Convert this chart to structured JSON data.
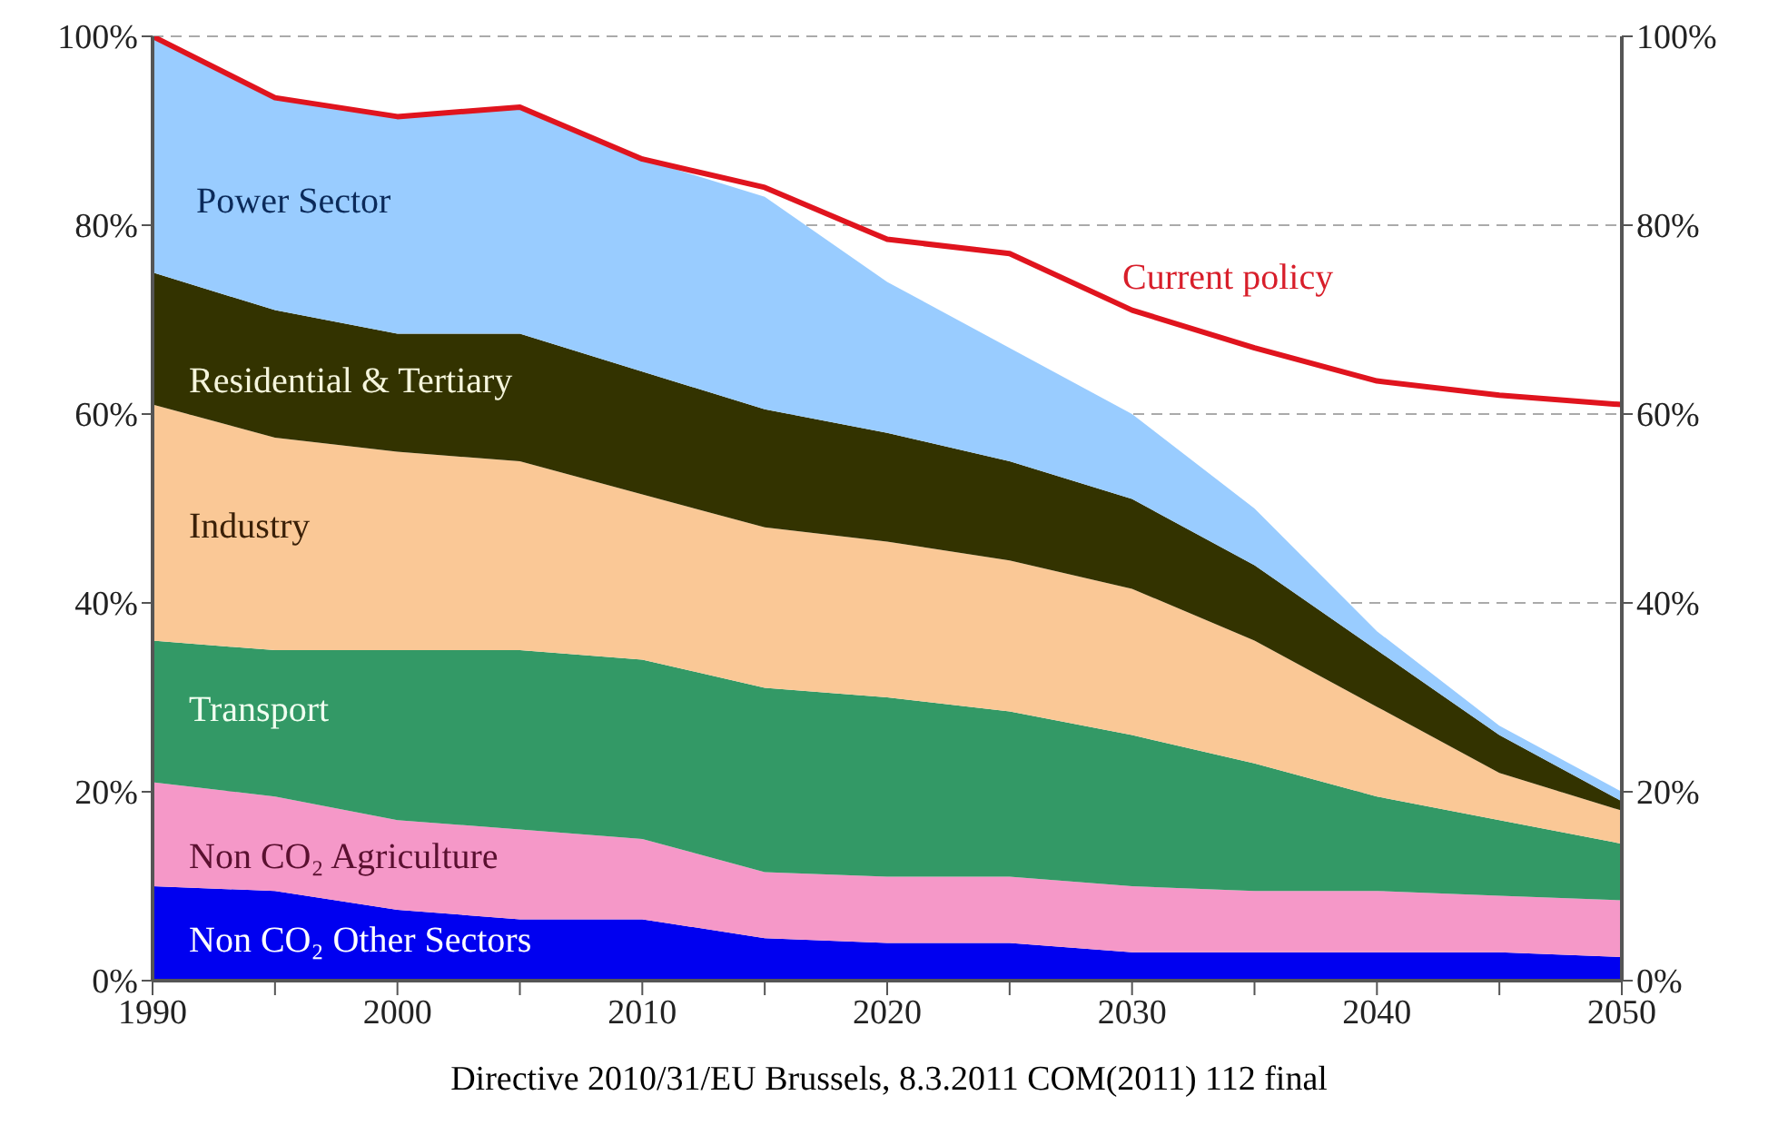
{
  "chart_data": {
    "type": "area",
    "stacked": true,
    "x": [
      1990,
      1995,
      2000,
      2005,
      2010,
      2015,
      2020,
      2025,
      2030,
      2035,
      2040,
      2045,
      2050
    ],
    "series": [
      {
        "name": "Non CO₂ Other Sectors",
        "color": "#0000f0",
        "values": [
          10,
          9.5,
          7.5,
          6.5,
          6.5,
          4.5,
          4,
          4,
          3,
          3,
          3,
          3,
          2.5
        ]
      },
      {
        "name": "Non CO₂ Agriculture",
        "color": "#f598c8",
        "values": [
          11,
          10,
          9.5,
          9.5,
          8.5,
          7,
          7,
          7,
          7,
          6.5,
          6.5,
          6,
          6
        ]
      },
      {
        "name": "Transport",
        "color": "#339966",
        "values": [
          15,
          15.5,
          18,
          19,
          19,
          19.5,
          19,
          17.5,
          16,
          13.5,
          10,
          8,
          6
        ]
      },
      {
        "name": "Industry",
        "color": "#fac896",
        "values": [
          25,
          22.5,
          21,
          20,
          17.5,
          17,
          16.5,
          16,
          15.5,
          13,
          9.5,
          5,
          3.5
        ]
      },
      {
        "name": "Residential & Tertiary",
        "color": "#333300",
        "values": [
          14,
          13.5,
          12.5,
          13.5,
          13,
          12.5,
          11.5,
          10.5,
          9.5,
          8,
          6,
          4,
          1
        ]
      },
      {
        "name": "Power Sector",
        "color": "#99ccff",
        "values": [
          25,
          22.5,
          23,
          24,
          22.5,
          22.5,
          16,
          12,
          9,
          6,
          2,
          1,
          1
        ]
      },
      {
        "name": "Current policy",
        "type": "line",
        "color": "#e0141e",
        "values": [
          100,
          93.5,
          91.5,
          92.5,
          87,
          84,
          78.5,
          77,
          71,
          67,
          63.5,
          62,
          61
        ]
      }
    ],
    "xlim": [
      1990,
      2050
    ],
    "xticks": [
      1990,
      {
        "value": 1995,
        "label": null
      },
      2000,
      {
        "value": 2005,
        "label": null
      },
      2010,
      {
        "value": 2015,
        "label": null
      },
      2020,
      {
        "value": 2025,
        "label": null
      },
      2030,
      {
        "value": 2035,
        "label": null
      },
      2040,
      {
        "value": 2045,
        "label": null
      },
      2050
    ],
    "ylim": [
      0,
      100
    ],
    "yticks": [
      {
        "value": 0,
        "label": "0%"
      },
      {
        "value": 20,
        "label": "20%"
      },
      {
        "value": 40,
        "label": "40%"
      },
      {
        "value": 60,
        "label": "60%"
      },
      {
        "value": 80,
        "label": "80%"
      },
      {
        "value": 100,
        "label": "100%"
      }
    ],
    "y2lim": [
      0,
      100
    ],
    "y2ticks": [
      {
        "value": 0,
        "label": "0%"
      },
      {
        "value": 20,
        "label": "20%"
      },
      {
        "value": 40,
        "label": "40%"
      },
      {
        "value": 60,
        "label": "60%"
      },
      {
        "value": 80,
        "label": "80%"
      },
      {
        "value": 100,
        "label": "100%"
      }
    ],
    "grid": "y",
    "legend": false,
    "annotations": [
      "Directive 2010/31/EU Brussels, 8.3.2011 COM(2011) 112 final"
    ]
  }
}
